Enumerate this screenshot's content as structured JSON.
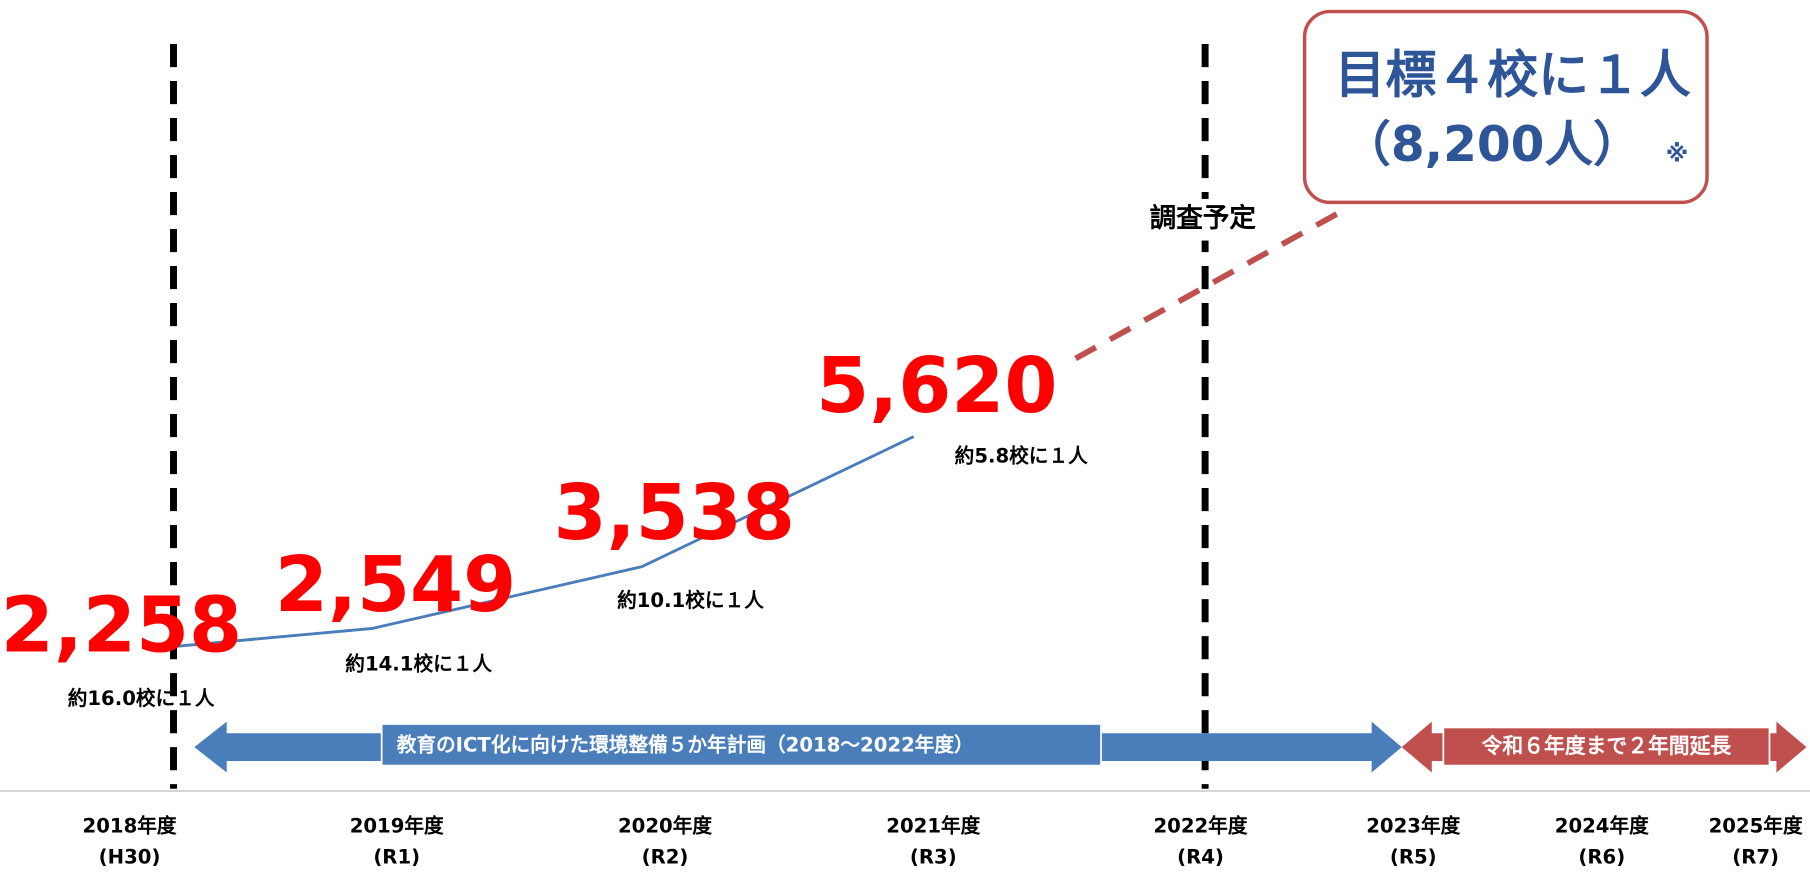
{
  "chart_data": {
    "type": "line",
    "categories": [
      "2018年度",
      "2019年度",
      "2020年度",
      "2021年度",
      "2022年度",
      "2023年度",
      "2024年度",
      "2025年度"
    ],
    "category_sublabels": [
      "(H30)",
      "(R1)",
      "(R2)",
      "(R3)",
      "(R4)",
      "(R5)",
      "(R6)",
      "(R7)"
    ],
    "values": [
      2258,
      2549,
      3538,
      5620,
      null,
      null,
      null,
      null
    ],
    "value_labels": [
      "2,258",
      "2,549",
      "3,538",
      "5,620",
      null,
      null,
      null,
      null
    ],
    "ratio_labels": [
      "約16.0校に１人",
      "約14.1校に１人",
      "約10.1校に１人",
      "約5.8校に１人",
      null,
      null,
      null,
      null
    ],
    "color": "#4a7ebb",
    "label_color": "#ff0000",
    "annotations": {
      "survey": "調査予定",
      "target_title": "目標４校に１人",
      "target_value": "（8,200人）",
      "target_note": "※",
      "plan_arrow": "教育のICT化に向けた環境整備５か年計画（2018～2022年度）",
      "extension_arrow": "令和６年度まで２年間延長"
    }
  }
}
